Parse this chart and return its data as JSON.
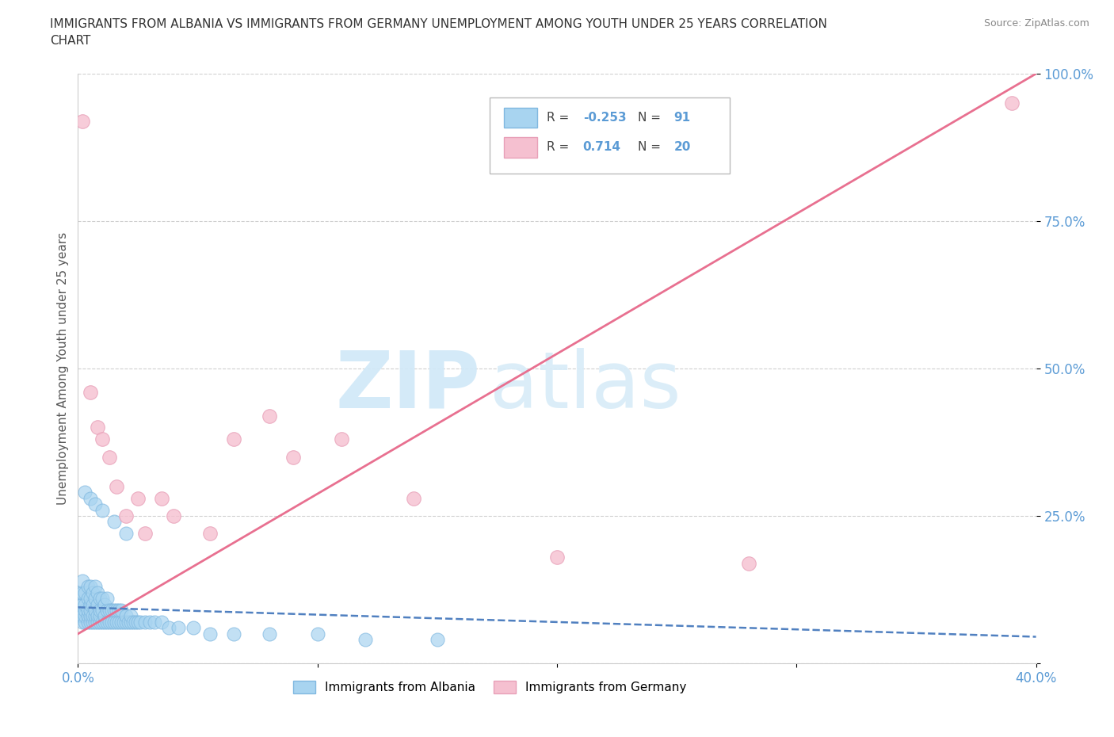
{
  "title_line1": "IMMIGRANTS FROM ALBANIA VS IMMIGRANTS FROM GERMANY UNEMPLOYMENT AMONG YOUTH UNDER 25 YEARS CORRELATION",
  "title_line2": "CHART",
  "source": "Source: ZipAtlas.com",
  "ylabel": "Unemployment Among Youth under 25 years",
  "xlim": [
    0.0,
    0.4
  ],
  "ylim": [
    0.0,
    1.0
  ],
  "albania_color": "#A8D4F0",
  "albania_edge": "#80B8E0",
  "germany_color": "#F5C0D0",
  "germany_edge": "#E8A0B8",
  "trend_albania_color": "#5080C0",
  "trend_germany_color": "#E87090",
  "background_color": "#FFFFFF",
  "grid_color": "#BBBBBB",
  "tick_color": "#5B9BD5",
  "watermark_color": "#D0E8F8",
  "legend_box_color": "#EEEEEE",
  "R_albania": -0.253,
  "N_albania": 91,
  "R_germany": 0.714,
  "N_germany": 20,
  "albania_scatter_x": [
    0.001,
    0.001,
    0.001,
    0.002,
    0.002,
    0.002,
    0.002,
    0.002,
    0.003,
    0.003,
    0.003,
    0.003,
    0.003,
    0.004,
    0.004,
    0.004,
    0.004,
    0.004,
    0.005,
    0.005,
    0.005,
    0.005,
    0.005,
    0.005,
    0.006,
    0.006,
    0.006,
    0.006,
    0.007,
    0.007,
    0.007,
    0.007,
    0.007,
    0.008,
    0.008,
    0.008,
    0.008,
    0.009,
    0.009,
    0.009,
    0.009,
    0.01,
    0.01,
    0.01,
    0.011,
    0.011,
    0.011,
    0.012,
    0.012,
    0.012,
    0.013,
    0.013,
    0.014,
    0.014,
    0.015,
    0.015,
    0.016,
    0.016,
    0.017,
    0.017,
    0.018,
    0.018,
    0.019,
    0.02,
    0.02,
    0.021,
    0.022,
    0.022,
    0.023,
    0.024,
    0.025,
    0.026,
    0.028,
    0.03,
    0.032,
    0.035,
    0.038,
    0.042,
    0.048,
    0.055,
    0.065,
    0.08,
    0.1,
    0.12,
    0.15,
    0.003,
    0.005,
    0.007,
    0.01,
    0.015,
    0.02
  ],
  "albania_scatter_y": [
    0.08,
    0.1,
    0.12,
    0.07,
    0.08,
    0.1,
    0.12,
    0.14,
    0.07,
    0.08,
    0.09,
    0.1,
    0.12,
    0.07,
    0.08,
    0.09,
    0.11,
    0.13,
    0.07,
    0.08,
    0.09,
    0.1,
    0.11,
    0.13,
    0.07,
    0.08,
    0.1,
    0.12,
    0.07,
    0.08,
    0.09,
    0.11,
    0.13,
    0.07,
    0.08,
    0.1,
    0.12,
    0.07,
    0.08,
    0.09,
    0.11,
    0.07,
    0.09,
    0.11,
    0.07,
    0.08,
    0.1,
    0.07,
    0.09,
    0.11,
    0.07,
    0.09,
    0.07,
    0.09,
    0.07,
    0.09,
    0.07,
    0.09,
    0.07,
    0.09,
    0.07,
    0.09,
    0.07,
    0.07,
    0.08,
    0.07,
    0.07,
    0.08,
    0.07,
    0.07,
    0.07,
    0.07,
    0.07,
    0.07,
    0.07,
    0.07,
    0.06,
    0.06,
    0.06,
    0.05,
    0.05,
    0.05,
    0.05,
    0.04,
    0.04,
    0.29,
    0.28,
    0.27,
    0.26,
    0.24,
    0.22
  ],
  "germany_scatter_x": [
    0.002,
    0.005,
    0.008,
    0.01,
    0.013,
    0.016,
    0.02,
    0.025,
    0.028,
    0.035,
    0.04,
    0.055,
    0.065,
    0.08,
    0.09,
    0.11,
    0.14,
    0.2,
    0.28,
    0.39
  ],
  "germany_scatter_y": [
    0.92,
    0.46,
    0.4,
    0.38,
    0.35,
    0.3,
    0.25,
    0.28,
    0.22,
    0.28,
    0.25,
    0.22,
    0.38,
    0.42,
    0.35,
    0.38,
    0.28,
    0.18,
    0.17,
    0.95
  ],
  "albania_trend_x": [
    0.0,
    0.4
  ],
  "albania_trend_y": [
    0.095,
    0.045
  ],
  "germany_trend_x": [
    0.0,
    0.4
  ],
  "germany_trend_y": [
    0.05,
    1.0
  ]
}
